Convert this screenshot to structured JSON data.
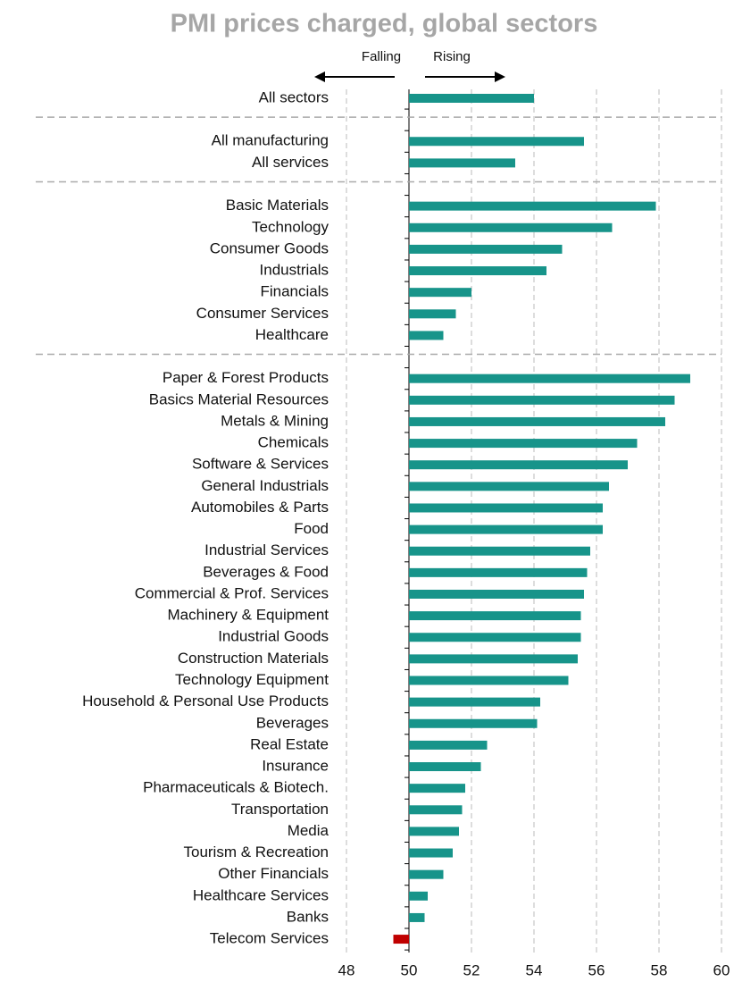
{
  "chart_data": {
    "type": "hbar",
    "title": "PMI prices charged, global sectors",
    "annotations": [
      "Falling",
      "Rising"
    ],
    "categories": [
      "All sectors",
      null,
      "All manufacturing",
      "All services",
      null,
      "Basic Materials",
      "Technology",
      "Consumer Goods",
      "Industrials",
      "Financials",
      "Consumer Services",
      "Healthcare",
      null,
      "Paper & Forest Products",
      "Basics Material Resources",
      "Metals & Mining",
      "Chemicals",
      "Software & Services",
      "General Industrials",
      "Automobiles & Parts",
      "Food",
      "Industrial Services",
      "Beverages & Food",
      "Commercial & Prof. Services",
      "Machinery & Equipment",
      "Industrial Goods",
      "Construction Materials",
      "Technology Equipment",
      "Household & Personal Use Products",
      "Beverages",
      "Real Estate",
      "Insurance",
      "Pharmaceuticals & Biotech.",
      "Transportation",
      "Media",
      "Tourism & Recreation",
      "Other Financials",
      "Healthcare Services",
      "Banks",
      "Telecom Services"
    ],
    "values": [
      54.0,
      null,
      55.6,
      53.4,
      null,
      57.9,
      56.5,
      54.9,
      54.4,
      52.0,
      51.5,
      51.1,
      null,
      59.0,
      58.5,
      58.2,
      57.3,
      57.0,
      56.4,
      56.2,
      56.2,
      55.8,
      55.7,
      55.6,
      55.5,
      55.5,
      55.4,
      55.1,
      54.2,
      54.1,
      52.5,
      52.3,
      51.8,
      51.7,
      51.6,
      51.4,
      51.1,
      50.6,
      50.5,
      49.5
    ],
    "baseline": 50,
    "color": "#17948a",
    "negative_color": "#c00000",
    "xlim": [
      48,
      60
    ],
    "xticks": [
      48,
      50,
      52,
      54,
      56,
      58,
      60
    ],
    "grid": true
  }
}
